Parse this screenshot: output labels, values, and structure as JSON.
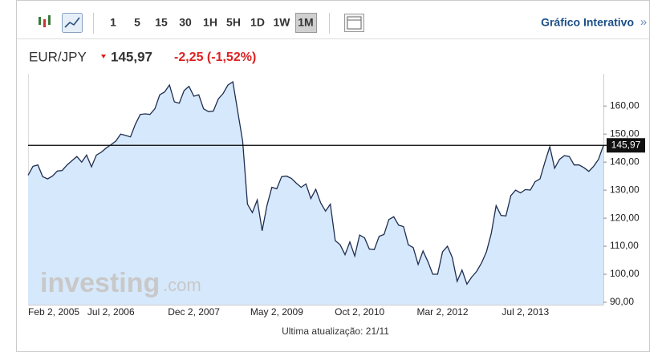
{
  "toolbar": {
    "intervals": [
      "1",
      "5",
      "15",
      "30",
      "1H",
      "5H",
      "1D",
      "1W",
      "1M"
    ],
    "link": "Gráfico Interativo",
    "link_arrow": "»"
  },
  "header": {
    "symbol": "EUR/JPY",
    "price": "145,97",
    "change": "-2,25 (-1,52%)"
  },
  "watermark": {
    "main": "investing",
    "suffix": ".com"
  },
  "footer": "Ultima atualização: 21/11",
  "chart_data": {
    "type": "line",
    "categories": [
      "Feb 2, 2005",
      null,
      null,
      null,
      null,
      null,
      null,
      null,
      null,
      null,
      null,
      null,
      null,
      null,
      null,
      null,
      null,
      "Jul 2, 2006",
      null,
      null,
      null,
      null,
      null,
      null,
      null,
      null,
      null,
      null,
      null,
      null,
      null,
      null,
      null,
      null,
      "Dec 2, 2007",
      null,
      null,
      null,
      null,
      null,
      null,
      null,
      null,
      null,
      null,
      null,
      null,
      null,
      null,
      null,
      null,
      "May 2, 2009",
      null,
      null,
      null,
      null,
      null,
      null,
      null,
      null,
      null,
      null,
      null,
      null,
      null,
      null,
      null,
      null,
      "Oct 2, 2010",
      null,
      null,
      null,
      null,
      null,
      null,
      null,
      null,
      null,
      null,
      null,
      null,
      null,
      null,
      null,
      null,
      "Mar 2, 2012",
      null,
      null,
      null,
      null,
      null,
      null,
      null,
      null,
      null,
      null,
      null,
      null,
      null,
      null,
      null,
      null,
      "Jul 2, 2013",
      null,
      null,
      null,
      null,
      null,
      null,
      null,
      null,
      null,
      null,
      null,
      null,
      null,
      null,
      null,
      null
    ],
    "series": [
      {
        "color": "#1f2d50",
        "fill": "#d6e8fb",
        "values": [
          135.3,
          138.5,
          139,
          134.8,
          134,
          135,
          136.8,
          137,
          139,
          140.5,
          142,
          140,
          142.5,
          138.3,
          142.5,
          143.5,
          145,
          146.2,
          147.5,
          150,
          149.5,
          149,
          153.5,
          157,
          157.2,
          157,
          159,
          164,
          165,
          167.5,
          161.5,
          161,
          165.5,
          167,
          163.5,
          164,
          159,
          158,
          158.2,
          162.5,
          164.5,
          167.5,
          168.6,
          158,
          147.5,
          125,
          122,
          126.5,
          115.5,
          124.5,
          131,
          130.5,
          134.8,
          135,
          134.2,
          132.5,
          131,
          132.2,
          127,
          130.3,
          125.5,
          122.5,
          125,
          112,
          110.5,
          107,
          111.5,
          106.5,
          114,
          113,
          109,
          108.8,
          113.5,
          114.2,
          119.5,
          120.5,
          117.5,
          117,
          110.5,
          109.5,
          103.5,
          108.3,
          104.5,
          100,
          100,
          108,
          110,
          106,
          97.5,
          101.5,
          96.5,
          99,
          101,
          104,
          108,
          114.5,
          124.5,
          121,
          120.8,
          128,
          130,
          129,
          130.2,
          130,
          133,
          134,
          140,
          145.5,
          137.8,
          141,
          142.3,
          142,
          139,
          139,
          138,
          136.7,
          138.5,
          141,
          145.97
        ]
      }
    ],
    "current": {
      "value": 145.97,
      "label": "145,97"
    },
    "ylim": [
      90,
      171.5
    ],
    "yticks": [
      {
        "value": 90,
        "label": "90,00"
      },
      {
        "value": 100,
        "label": "100,00"
      },
      {
        "value": 110,
        "label": "110,00"
      },
      {
        "value": 120,
        "label": "120,00"
      },
      {
        "value": 130,
        "label": "130,00"
      },
      {
        "value": 140,
        "label": "140,00"
      },
      {
        "value": 150,
        "label": "150,00"
      },
      {
        "value": 160,
        "label": "160,00"
      }
    ]
  }
}
